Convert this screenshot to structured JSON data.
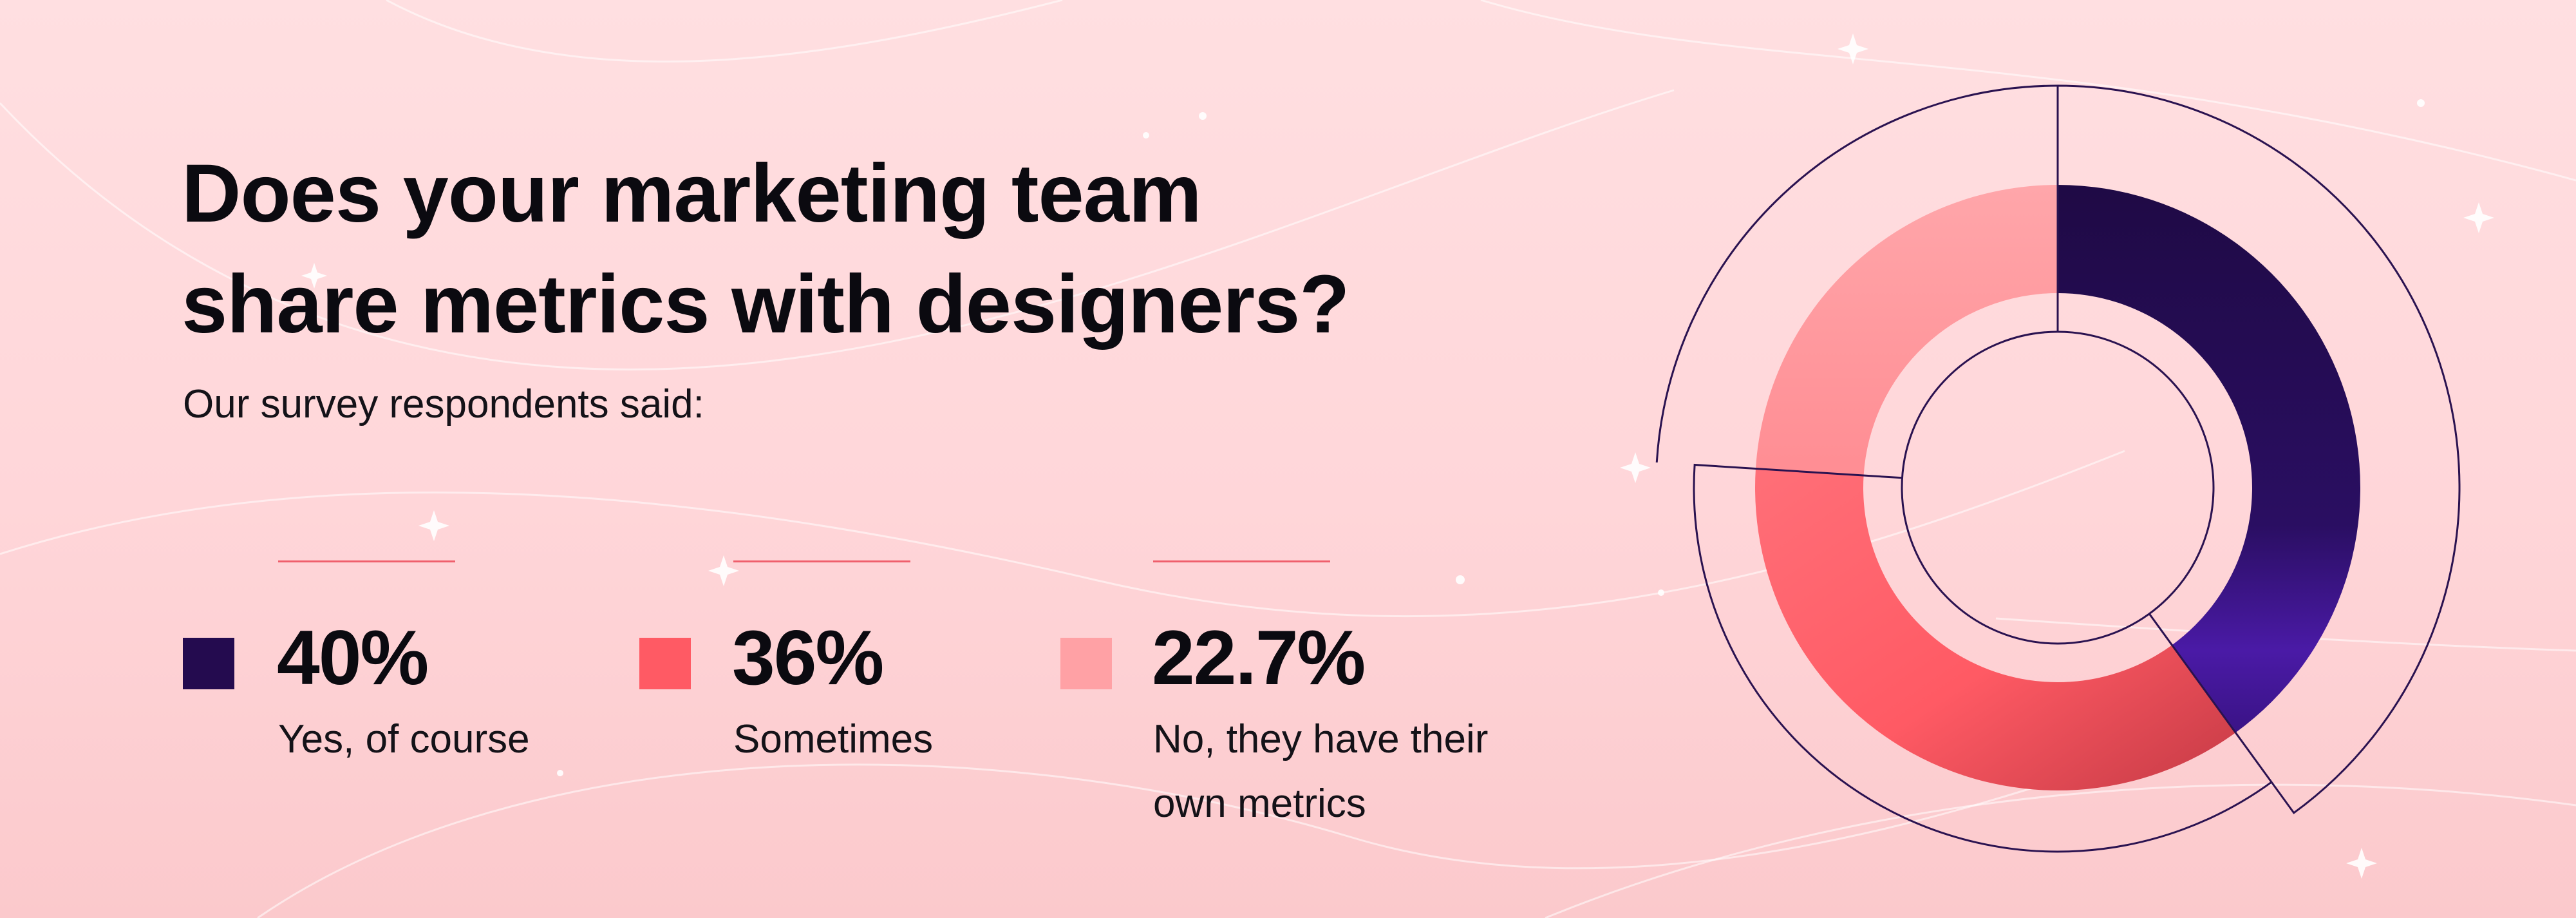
{
  "title_line1": "Does your marketing team",
  "title_line2": "share metrics with designers?",
  "subtitle": "Our survey respondents said:",
  "colors": {
    "yes": "#240b4f",
    "sometimes": "#ff5a64",
    "no": "#ffa1a5",
    "accent_line": "#ef5f6c",
    "outline": "#2a1250"
  },
  "chart_data": {
    "type": "pie",
    "title": "Does your marketing team share metrics with designers?",
    "subtitle": "Our survey respondents said:",
    "style": "donut",
    "slices": [
      {
        "label": "Yes, of course",
        "value": 40,
        "display": "40%",
        "color": "#240b4f"
      },
      {
        "label": "Sometimes",
        "value": 36,
        "display": "36%",
        "color": "#ff5a64"
      },
      {
        "label": "No, they have their own metrics",
        "value": 22.7,
        "display": "22.7%",
        "color": "#ffa1a5"
      }
    ],
    "legend_position": "bottom-left"
  },
  "legend": [
    {
      "value": "40%",
      "label_lines": [
        "Yes, of course"
      ]
    },
    {
      "value": "36%",
      "label_lines": [
        "Sometimes"
      ]
    },
    {
      "value": "22.7%",
      "label_lines": [
        "No, they have their",
        "own metrics"
      ]
    }
  ]
}
